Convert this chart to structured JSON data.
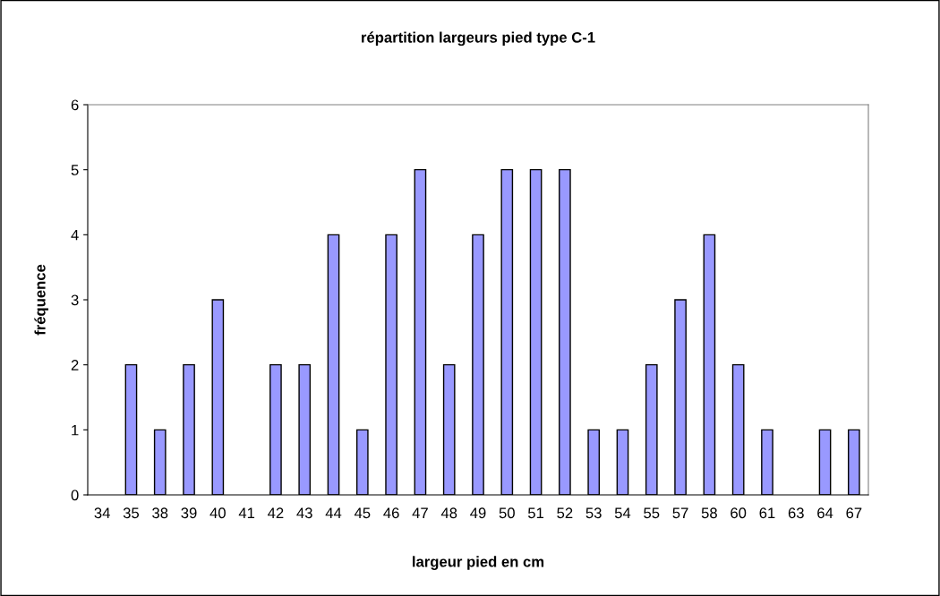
{
  "chart_data": {
    "type": "bar",
    "title": "répartition largeurs pied type C-1",
    "xlabel": "largeur pied en cm",
    "ylabel": "fréquence",
    "categories": [
      "34",
      "35",
      "38",
      "39",
      "40",
      "41",
      "42",
      "43",
      "44",
      "45",
      "46",
      "47",
      "48",
      "49",
      "50",
      "51",
      "52",
      "53",
      "54",
      "55",
      "57",
      "58",
      "60",
      "61",
      "63",
      "64",
      "67"
    ],
    "values": [
      0,
      2,
      1,
      2,
      3,
      0,
      2,
      2,
      4,
      1,
      4,
      5,
      2,
      4,
      5,
      5,
      5,
      1,
      1,
      2,
      3,
      4,
      2,
      1,
      0,
      1,
      1
    ],
    "color": "#9999ff",
    "ylim": [
      0,
      6
    ],
    "yticks": [
      0,
      1,
      2,
      3,
      4,
      5,
      6
    ],
    "grid": false,
    "legend": false
  }
}
